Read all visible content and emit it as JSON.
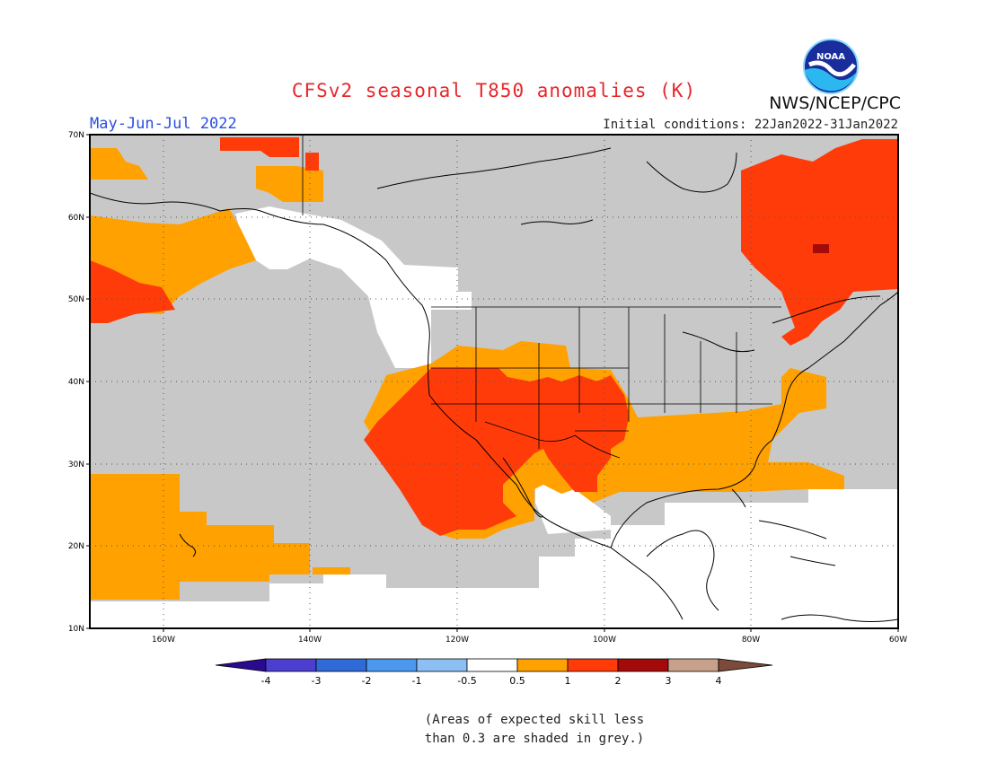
{
  "header": {
    "title": "CFSv2 seasonal T850 anomalies (K)",
    "period": "May-Jun-Jul 2022",
    "initial_conditions": "Initial conditions: 22Jan2022-31Jan2022",
    "agency": "NWS/NCEP/CPC",
    "logo_text": "NOAA"
  },
  "map": {
    "lat_labels": [
      "70N",
      "60N",
      "50N",
      "40N",
      "30N",
      "20N",
      "10N"
    ],
    "lon_labels": [
      "160W",
      "140W",
      "120W",
      "100W",
      "80W",
      "60W"
    ]
  },
  "legend": {
    "labels": [
      "-4",
      "-3",
      "-2",
      "-1",
      "-0.5",
      "0.5",
      "1",
      "2",
      "3",
      "4"
    ],
    "colors": {
      "below_-4": "#2a0a8f",
      "-4_-3": "#4c3fd0",
      "-3_-2": "#2f6ad8",
      "-2_-1": "#4c98ee",
      "-1_-0.5": "#8cc0f5",
      "-0.5_0.5": "#ffffff",
      "0.5_1": "#ffa100",
      "1_2": "#ff3b0a",
      "2_3": "#a30a0a",
      "3_4": "#c9a08a",
      "above_4": "#7a4a3a"
    }
  },
  "colors": {
    "grey_low_skill": "#c8c8c8",
    "title": "#e8262a",
    "period": "#2b4ee0"
  },
  "footnote": {
    "line1": "(Areas of expected skill less",
    "line2": "than 0.3 are shaded in grey.)"
  }
}
